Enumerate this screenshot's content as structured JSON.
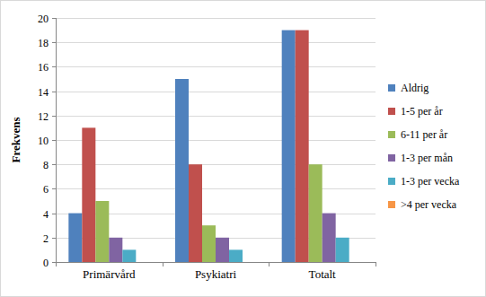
{
  "chart_data": {
    "type": "bar",
    "y_label": "Frekvens",
    "categories": [
      "Primärvård",
      "Psykiatri",
      "Totalt"
    ],
    "series": [
      {
        "name": "Aldrig",
        "color": "#4f81bd",
        "values": [
          4,
          15,
          19
        ]
      },
      {
        "name": "1-5 per år",
        "color": "#c0504d",
        "values": [
          11,
          8,
          19
        ]
      },
      {
        "name": "6-11 per år",
        "color": "#9bbb59",
        "values": [
          5,
          3,
          8
        ]
      },
      {
        "name": "1-3 per mån",
        "color": "#8064a2",
        "values": [
          2,
          2,
          4
        ]
      },
      {
        "name": "1-3 per vecka",
        "color": "#4bacc6",
        "values": [
          1,
          1,
          2
        ]
      },
      {
        "name": ">4 per vecka",
        "color": "#f79646",
        "values": [
          0,
          0,
          0
        ]
      }
    ],
    "ylim": [
      0,
      20
    ],
    "yticks": [
      0,
      2,
      4,
      6,
      8,
      10,
      12,
      14,
      16,
      18,
      20
    ],
    "grid": true,
    "legend": "right"
  }
}
